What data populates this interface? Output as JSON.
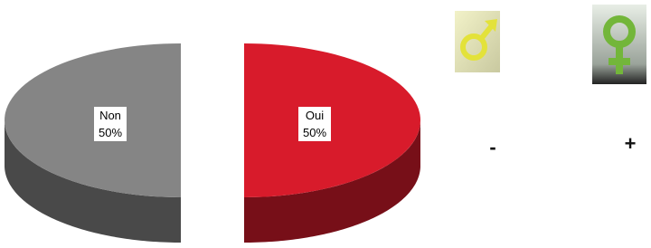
{
  "chart_data": {
    "type": "pie",
    "categories": [
      "Non",
      "Oui"
    ],
    "values": [
      50,
      50
    ],
    "value_labels": [
      "50%",
      "50%"
    ],
    "colors": [
      "#858585",
      "#d81b2b"
    ]
  },
  "symbols": [
    {
      "label": "-"
    },
    {
      "label": "+"
    }
  ]
}
